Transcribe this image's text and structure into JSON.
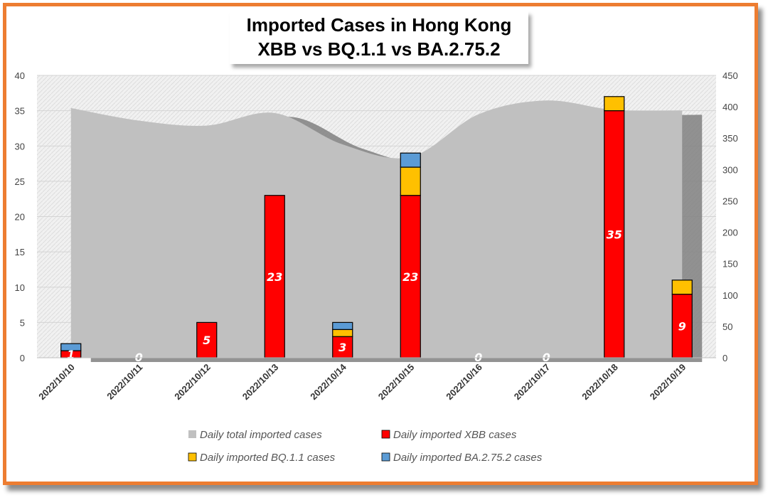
{
  "chart_data": {
    "type": "bar",
    "title_lines": [
      "Imported Cases in Hong Kong",
      "XBB vs BQ.1.1 vs BA.2.75.2"
    ],
    "categories": [
      "2022/10/10",
      "2022/10/11",
      "2022/10/12",
      "2022/10/13",
      "2022/10/14",
      "2022/10/15",
      "2022/10/16",
      "2022/10/17",
      "2022/10/18",
      "2022/10/19"
    ],
    "stacked": true,
    "series": [
      {
        "name": "Daily imported XBB cases",
        "color": "#FF0000",
        "values": [
          1,
          0,
          5,
          23,
          3,
          23,
          0,
          0,
          35,
          9
        ],
        "data_labels": [
          "1",
          "0",
          "5",
          "23",
          "3",
          "23",
          "0",
          "0",
          "35",
          "9"
        ]
      },
      {
        "name": "Daily imported BQ.1.1 cases",
        "color": "#FFC000",
        "values": [
          0,
          0,
          0,
          0,
          1,
          4,
          0,
          0,
          2,
          2
        ]
      },
      {
        "name": "Daily imported BA.2.75.2 cases",
        "color": "#5B9BD5",
        "values": [
          1,
          0,
          0,
          0,
          1,
          2,
          0,
          0,
          0,
          0
        ]
      }
    ],
    "area_series": {
      "name": "Daily total imported cases",
      "color": "#C0C0C0",
      "axis": "right",
      "values": [
        398,
        378,
        370,
        390,
        340,
        320,
        388,
        410,
        395,
        394
      ]
    },
    "yleft": {
      "lim": [
        0,
        40
      ],
      "ticks": [
        "0",
        "5",
        "10",
        "15",
        "20",
        "25",
        "30",
        "35",
        "40"
      ]
    },
    "yright": {
      "lim": [
        0,
        450
      ],
      "ticks": [
        "0",
        "50",
        "100",
        "150",
        "200",
        "250",
        "300",
        "350",
        "400",
        "450"
      ]
    },
    "legend": {
      "placement": "bottom"
    },
    "grid": true
  }
}
